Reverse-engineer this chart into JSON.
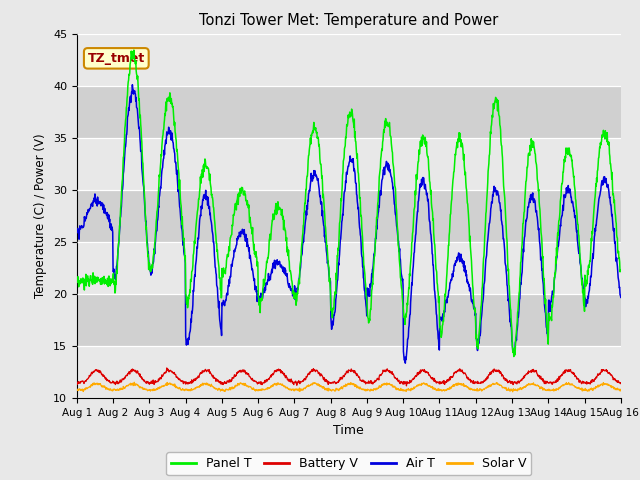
{
  "title": "Tonzi Tower Met: Temperature and Power",
  "xlabel": "Time",
  "ylabel": "Temperature (C) / Power (V)",
  "annotation": "TZ_tmet",
  "ylim": [
    10,
    45
  ],
  "yticks": [
    10,
    15,
    20,
    25,
    30,
    35,
    40,
    45
  ],
  "plot_bg_color": "#d8d8d8",
  "fig_bg_color": "#e8e8e8",
  "line_colors": {
    "panel_t": "#00ee00",
    "battery_v": "#dd0000",
    "air_t": "#0000dd",
    "solar_v": "#ffaa00"
  },
  "legend_labels": [
    "Panel T",
    "Battery V",
    "Air T",
    "Solar V"
  ],
  "xtick_labels": [
    "Aug 1",
    "Aug 2",
    "Aug 3",
    "Aug 4",
    "Aug 5",
    "Aug 6",
    "Aug 7",
    "Aug 8",
    "Aug 9",
    "Aug 10",
    "Aug 11",
    "Aug 12",
    "Aug 13",
    "Aug 14",
    "Aug 15",
    "Aug 16"
  ],
  "n_days": 15,
  "pts_per_day": 96,
  "panel_maxs": [
    21.5,
    43.0,
    39.0,
    32.5,
    30.0,
    28.5,
    36.0,
    37.5,
    36.5,
    35.0,
    35.0,
    38.5,
    34.5,
    34.0,
    35.5
  ],
  "panel_mins": [
    21.0,
    20.5,
    22.0,
    19.0,
    22.0,
    19.0,
    19.5,
    18.0,
    17.5,
    17.5,
    16.0,
    15.0,
    14.0,
    17.5,
    21.0
  ],
  "air_maxs": [
    29.0,
    39.5,
    35.5,
    29.5,
    26.0,
    23.0,
    31.5,
    33.0,
    32.5,
    31.0,
    23.5,
    30.0,
    29.5,
    30.0,
    31.0
  ],
  "air_mins": [
    26.0,
    21.5,
    22.0,
    15.0,
    19.0,
    19.5,
    20.0,
    17.0,
    20.0,
    13.5,
    17.5,
    15.0,
    14.5,
    19.0,
    19.0
  ],
  "batt_base": 11.5,
  "batt_amp": 1.2,
  "solar_base": 10.8,
  "solar_amp": 0.6,
  "grid_colors": [
    "#c8c8c8",
    "#e0e0e0"
  ]
}
